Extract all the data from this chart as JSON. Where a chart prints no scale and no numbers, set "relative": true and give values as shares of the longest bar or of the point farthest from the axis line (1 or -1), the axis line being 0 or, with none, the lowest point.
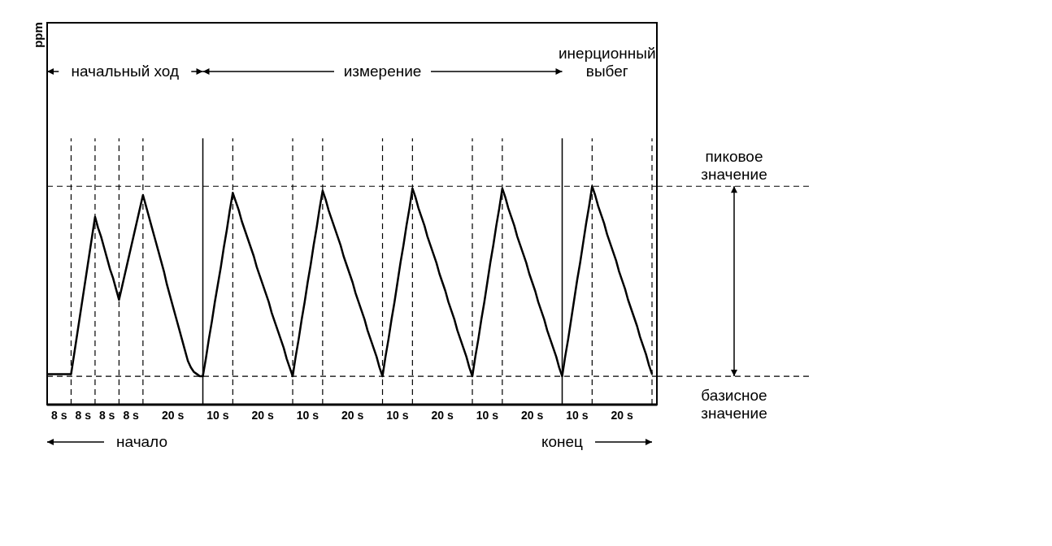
{
  "chart_data": {
    "type": "line",
    "relative": true,
    "categories": [
      null,
      null,
      null,
      null,
      "8 s",
      null,
      null,
      null,
      null,
      null,
      null,
      null,
      "8 s",
      null,
      null,
      null,
      null,
      null,
      null,
      null,
      "8 s",
      null,
      null,
      null,
      null,
      null,
      null,
      null,
      "8 s",
      null,
      null,
      null,
      null,
      null,
      null,
      null,
      null,
      null,
      null,
      null,
      null,
      null,
      "20 s",
      null,
      null,
      null,
      null,
      null,
      null,
      null,
      null,
      null,
      null,
      null,
      null,
      null,
      null,
      "10 s",
      null,
      null,
      null,
      null,
      null,
      null,
      null,
      null,
      null,
      null,
      null,
      null,
      null,
      null,
      "20 s",
      null,
      null,
      null,
      null,
      null,
      null,
      null,
      null,
      null,
      null,
      null,
      null,
      null,
      null,
      "10 s",
      null,
      null,
      null,
      null,
      null,
      null,
      null,
      null,
      null,
      null,
      null,
      null,
      null,
      null,
      "20 s",
      null,
      null,
      null,
      null,
      null,
      null,
      null,
      null,
      null,
      null,
      null,
      null,
      null,
      null,
      "10 s",
      null,
      null,
      null,
      null,
      null,
      null,
      null,
      null,
      null,
      null,
      null,
      null,
      null,
      null,
      "20 s",
      null,
      null,
      null,
      null,
      null,
      null,
      null,
      null,
      null,
      null,
      null,
      null,
      null,
      null,
      "10 s",
      null,
      null,
      null,
      null,
      null,
      null,
      null,
      null,
      null,
      null,
      null,
      null,
      null,
      null,
      "20 s",
      null,
      null,
      null,
      null,
      null,
      null,
      null,
      null,
      null,
      null,
      null,
      null,
      null,
      null,
      "10 s",
      null,
      null,
      null,
      null,
      null,
      null,
      null,
      null,
      null,
      null,
      null,
      null,
      null,
      null,
      "20 s",
      null,
      null,
      null,
      null,
      null,
      null,
      null,
      null,
      null,
      null
    ],
    "values": [
      0.14,
      0.14,
      0.14,
      0.14,
      0.14,
      0.14,
      0.14,
      0.14,
      0.14,
      0.23,
      0.32,
      0.41,
      0.5,
      0.59,
      0.68,
      0.77,
      0.86,
      0.81,
      0.77,
      0.72,
      0.67,
      0.62,
      0.58,
      0.53,
      0.48,
      0.54,
      0.6,
      0.66,
      0.72,
      0.78,
      0.84,
      0.9,
      0.96,
      0.91,
      0.86,
      0.81,
      0.76,
      0.71,
      0.66,
      0.61,
      0.55,
      0.5,
      0.45,
      0.4,
      0.35,
      0.3,
      0.25,
      0.2,
      0.17,
      0.15,
      0.14,
      0.13,
      0.13,
      0.21,
      0.3,
      0.38,
      0.47,
      0.55,
      0.63,
      0.72,
      0.8,
      0.89,
      0.97,
      0.93,
      0.89,
      0.84,
      0.8,
      0.76,
      0.72,
      0.68,
      0.63,
      0.59,
      0.55,
      0.51,
      0.47,
      0.42,
      0.38,
      0.34,
      0.3,
      0.26,
      0.21,
      0.17,
      0.13,
      0.22,
      0.3,
      0.39,
      0.47,
      0.56,
      0.64,
      0.73,
      0.81,
      0.9,
      0.98,
      0.94,
      0.89,
      0.85,
      0.81,
      0.77,
      0.73,
      0.68,
      0.64,
      0.6,
      0.56,
      0.51,
      0.47,
      0.43,
      0.39,
      0.34,
      0.3,
      0.26,
      0.22,
      0.17,
      0.13,
      0.22,
      0.3,
      0.39,
      0.47,
      0.56,
      0.65,
      0.73,
      0.82,
      0.9,
      0.99,
      0.95,
      0.9,
      0.86,
      0.82,
      0.77,
      0.73,
      0.69,
      0.65,
      0.6,
      0.56,
      0.52,
      0.47,
      0.43,
      0.39,
      0.34,
      0.3,
      0.26,
      0.22,
      0.17,
      0.13,
      0.22,
      0.3,
      0.39,
      0.47,
      0.56,
      0.65,
      0.73,
      0.82,
      0.9,
      0.99,
      0.95,
      0.9,
      0.86,
      0.82,
      0.77,
      0.73,
      0.69,
      0.65,
      0.6,
      0.56,
      0.52,
      0.47,
      0.43,
      0.39,
      0.34,
      0.3,
      0.26,
      0.22,
      0.17,
      0.13,
      0.22,
      0.3,
      0.39,
      0.48,
      0.57,
      0.65,
      0.74,
      0.83,
      0.91,
      1,
      0.96,
      0.91,
      0.87,
      0.83,
      0.78,
      0.74,
      0.7,
      0.66,
      0.61,
      0.57,
      0.53,
      0.48,
      0.44,
      0.4,
      0.36,
      0.31,
      0.27,
      0.23,
      0.18,
      0.14
    ],
    "color": "#000000",
    "marker": "none",
    "line_style": "solid",
    "ref_lines": [
      {
        "axis": "y",
        "value": 1,
        "label": "пиковое значение",
        "line_style": "dashed"
      },
      {
        "axis": "y",
        "value": 0.13,
        "label": "базисное значение",
        "line_style": "dashed"
      }
    ],
    "annotations": [
      "начальный ход",
      "измерение",
      "инерционный выбег",
      "начало",
      "конец",
      "ppm"
    ]
  }
}
